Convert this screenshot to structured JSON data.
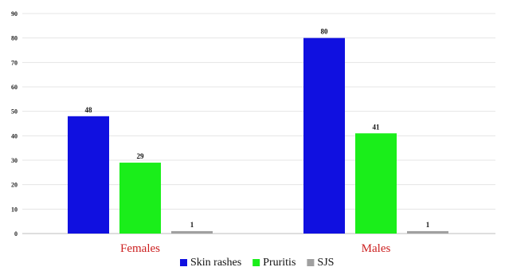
{
  "chart_data": {
    "type": "bar",
    "categories": [
      "Females",
      "Males"
    ],
    "series": [
      {
        "name": "Skin rashes",
        "values": [
          48,
          80
        ],
        "color": "#1010e0"
      },
      {
        "name": "Pruritis",
        "values": [
          29,
          41
        ],
        "color": "#1aee1a"
      },
      {
        "name": "SJS",
        "values": [
          1,
          1
        ],
        "color": "#a0a0a0"
      }
    ],
    "title": "",
    "xlabel": "",
    "ylabel": "",
    "ylim": [
      0,
      90
    ],
    "yticks": [
      0,
      10,
      20,
      30,
      40,
      50,
      60,
      70,
      80,
      90
    ],
    "grid": true,
    "legend_position": "bottom",
    "category_label_color": "#cc1f1f"
  }
}
